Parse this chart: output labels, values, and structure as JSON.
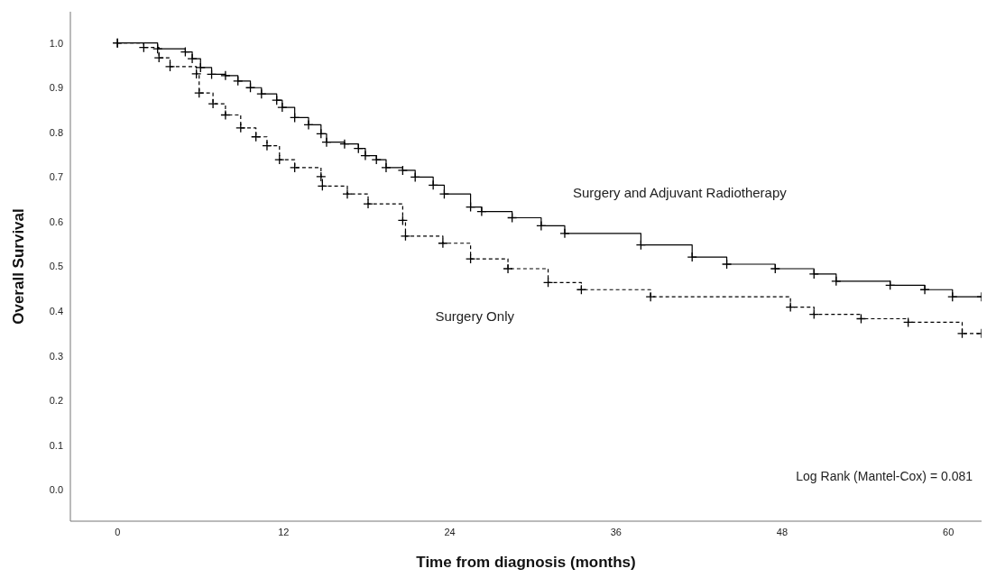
{
  "chart_data": {
    "type": "step",
    "xlabel": "Time from diagnosis (months)",
    "ylabel": "Overall Survival",
    "xlim": [
      -3.4,
      62.4
    ],
    "xticks": [
      0,
      12,
      24,
      36,
      48,
      60
    ],
    "ylim": [
      -0.07,
      1.07
    ],
    "yticks": [
      {
        "value": 0,
        "label": "0.0"
      },
      0.1,
      0.2,
      0.3,
      0.4,
      0.5,
      0.6,
      0.7,
      0.8,
      0.9,
      {
        "value": 1,
        "label": "1.0"
      }
    ],
    "grid": false,
    "legend": false,
    "marker": "cross",
    "series": [
      {
        "name": "Surgery and Adjuvant Radiotherapy",
        "color": "#000000",
        "line_style": "solid",
        "x": [
          0,
          2.9,
          4.9,
          5.4,
          6.0,
          6.8,
          7.8,
          8.7,
          9.6,
          10.4,
          11.5,
          11.9,
          12.8,
          13.8,
          14.7,
          15.1,
          16.4,
          17.4,
          17.9,
          18.7,
          19.4,
          20.6,
          21.5,
          22.8,
          23.6,
          25.5,
          26.3,
          28.5,
          30.6,
          32.3,
          37.8,
          41.5,
          44.0,
          47.5,
          50.3,
          51.9,
          55.8,
          58.3,
          60.3,
          62.4
        ],
        "values": [
          1.0,
          0.987,
          0.98,
          0.965,
          0.945,
          0.93,
          0.927,
          0.915,
          0.9,
          0.886,
          0.872,
          0.856,
          0.833,
          0.817,
          0.797,
          0.778,
          0.774,
          0.764,
          0.748,
          0.739,
          0.721,
          0.715,
          0.7,
          0.682,
          0.662,
          0.633,
          0.623,
          0.609,
          0.591,
          0.574,
          0.548,
          0.521,
          0.505,
          0.495,
          0.483,
          0.467,
          0.458,
          0.448,
          0.432,
          0.432
        ]
      },
      {
        "name": "Surgery Only",
        "color": "#000000",
        "line_style": "dashed",
        "x": [
          0,
          1.9,
          3.0,
          3.8,
          5.7,
          5.9,
          6.9,
          7.8,
          8.9,
          10.0,
          10.8,
          11.7,
          12.8,
          14.7,
          14.8,
          16.6,
          18.1,
          20.6,
          20.8,
          23.5,
          25.5,
          28.2,
          31.1,
          33.5,
          38.5,
          48.6,
          50.3,
          53.7,
          57.1,
          61.0,
          62.4
        ],
        "values": [
          1.0,
          0.99,
          0.967,
          0.947,
          0.931,
          0.888,
          0.864,
          0.839,
          0.81,
          0.79,
          0.77,
          0.739,
          0.721,
          0.701,
          0.68,
          0.662,
          0.64,
          0.603,
          0.568,
          0.552,
          0.517,
          0.495,
          0.464,
          0.448,
          0.432,
          0.409,
          0.393,
          0.383,
          0.375,
          0.35,
          0.35
        ]
      }
    ],
    "annotations": [
      "Log Rank (Mantel-Cox) = 0.081"
    ]
  }
}
